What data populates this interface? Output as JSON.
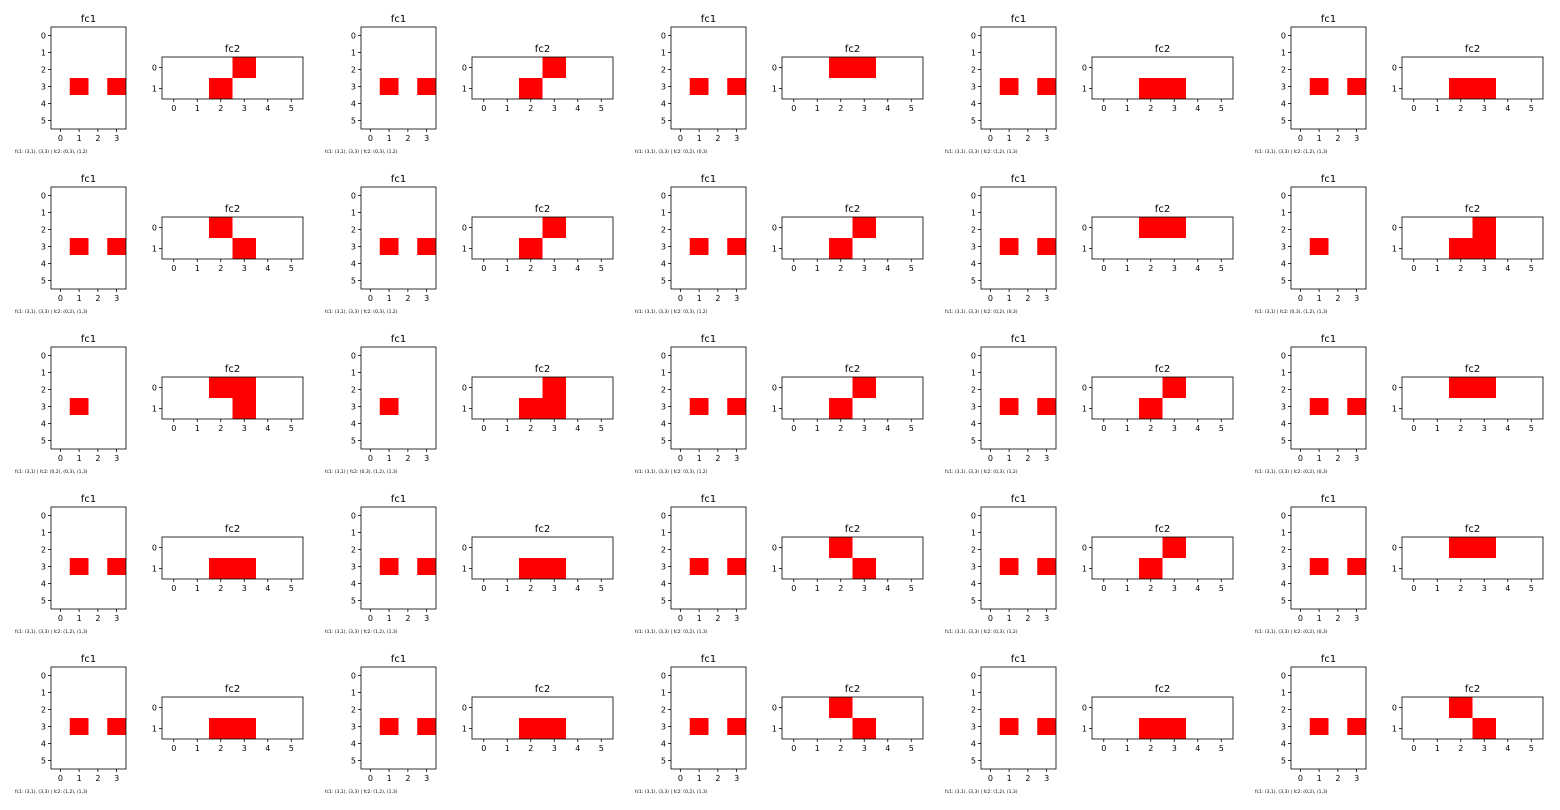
{
  "chart_data": {
    "type": "heatmap",
    "description_layout": "5 rows x 5 columns of panel pairs; each pair = fc1 (6x4 grid) and fc2 (2x6 grid); highlighted cells drawn in red",
    "fill_color": "#ff0000",
    "background_color": "#ffffff",
    "panels": [
      {
        "fc1_title": "fc1",
        "fc2_title": "fc2",
        "fc1_cells": [
          [
            3,
            1
          ],
          [
            3,
            3
          ]
        ],
        "fc2_cells": [
          [
            0,
            3
          ],
          [
            1,
            2
          ]
        ],
        "caption": "fc1: (3,1), (3,3) | fc2: (0,3), (1,2)"
      },
      {
        "fc1_title": "fc1",
        "fc2_title": "fc2",
        "fc1_cells": [
          [
            3,
            1
          ],
          [
            3,
            3
          ]
        ],
        "fc2_cells": [
          [
            0,
            3
          ],
          [
            1,
            2
          ]
        ],
        "caption": "fc1: (3,1), (3,3) | fc2: (0,3), (1,2)"
      },
      {
        "fc1_title": "fc1",
        "fc2_title": "fc2",
        "fc1_cells": [
          [
            3,
            1
          ],
          [
            3,
            3
          ]
        ],
        "fc2_cells": [
          [
            0,
            2
          ],
          [
            0,
            3
          ]
        ],
        "caption": "fc1: (3,1), (3,3) | fc2: (0,2), (0,3)"
      },
      {
        "fc1_title": "fc1",
        "fc2_title": "fc2",
        "fc1_cells": [
          [
            3,
            1
          ],
          [
            3,
            3
          ]
        ],
        "fc2_cells": [
          [
            1,
            2
          ],
          [
            1,
            3
          ]
        ],
        "caption": "fc1: (3,1), (3,3) | fc2: (1,2), (1,3)"
      },
      {
        "fc1_title": "fc1",
        "fc2_title": "fc2",
        "fc1_cells": [
          [
            3,
            1
          ],
          [
            3,
            3
          ]
        ],
        "fc2_cells": [
          [
            1,
            2
          ],
          [
            1,
            3
          ]
        ],
        "caption": "fc1: (3,1), (3,3) | fc2: (1,2), (1,3)"
      },
      {
        "fc1_title": "fc1",
        "fc2_title": "fc2",
        "fc1_cells": [
          [
            3,
            1
          ],
          [
            3,
            3
          ]
        ],
        "fc2_cells": [
          [
            0,
            2
          ],
          [
            1,
            3
          ]
        ],
        "caption": "fc1: (3,1), (3,3) | fc2: (0,2), (1,3)"
      },
      {
        "fc1_title": "fc1",
        "fc2_title": "fc2",
        "fc1_cells": [
          [
            3,
            1
          ],
          [
            3,
            3
          ]
        ],
        "fc2_cells": [
          [
            0,
            3
          ],
          [
            1,
            2
          ]
        ],
        "caption": "fc1: (3,1), (3,3) | fc2: (0,3), (1,2)"
      },
      {
        "fc1_title": "fc1",
        "fc2_title": "fc2",
        "fc1_cells": [
          [
            3,
            1
          ],
          [
            3,
            3
          ]
        ],
        "fc2_cells": [
          [
            0,
            3
          ],
          [
            1,
            2
          ]
        ],
        "caption": "fc1: (3,1), (3,3) | fc2: (0,3), (1,2)"
      },
      {
        "fc1_title": "fc1",
        "fc2_title": "fc2",
        "fc1_cells": [
          [
            3,
            1
          ],
          [
            3,
            3
          ]
        ],
        "fc2_cells": [
          [
            0,
            2
          ],
          [
            0,
            3
          ]
        ],
        "caption": "fc1: (3,1), (3,3) | fc2: (0,2), (0,3)"
      },
      {
        "fc1_title": "fc1",
        "fc2_title": "fc2",
        "fc1_cells": [
          [
            3,
            1
          ]
        ],
        "fc2_cells": [
          [
            0,
            3
          ],
          [
            1,
            2
          ],
          [
            1,
            3
          ]
        ],
        "caption": "fc1: (3,1) | fc2: (0,3), (1,2), (1,3)"
      },
      {
        "fc1_title": "fc1",
        "fc2_title": "fc2",
        "fc1_cells": [
          [
            3,
            1
          ]
        ],
        "fc2_cells": [
          [
            0,
            2
          ],
          [
            0,
            3
          ],
          [
            1,
            3
          ]
        ],
        "caption": "fc1: (3,1) | fc2: (0,2), (0,3), (1,3)"
      },
      {
        "fc1_title": "fc1",
        "fc2_title": "fc2",
        "fc1_cells": [
          [
            3,
            1
          ]
        ],
        "fc2_cells": [
          [
            0,
            3
          ],
          [
            1,
            2
          ],
          [
            1,
            3
          ]
        ],
        "caption": "fc1: (3,1) | fc2: (0,3), (1,2), (1,3)"
      },
      {
        "fc1_title": "fc1",
        "fc2_title": "fc2",
        "fc1_cells": [
          [
            3,
            1
          ],
          [
            3,
            3
          ]
        ],
        "fc2_cells": [
          [
            0,
            3
          ],
          [
            1,
            2
          ]
        ],
        "caption": "fc1: (3,1), (3,3) | fc2: (0,3), (1,2)"
      },
      {
        "fc1_title": "fc1",
        "fc2_title": "fc2",
        "fc1_cells": [
          [
            3,
            1
          ],
          [
            3,
            3
          ]
        ],
        "fc2_cells": [
          [
            0,
            3
          ],
          [
            1,
            2
          ]
        ],
        "caption": "fc1: (3,1), (3,3) | fc2: (0,3), (1,2)"
      },
      {
        "fc1_title": "fc1",
        "fc2_title": "fc2",
        "fc1_cells": [
          [
            3,
            1
          ],
          [
            3,
            3
          ]
        ],
        "fc2_cells": [
          [
            0,
            2
          ],
          [
            0,
            3
          ]
        ],
        "caption": "fc1: (3,1), (3,3) | fc2: (0,2), (0,3)"
      },
      {
        "fc1_title": "fc1",
        "fc2_title": "fc2",
        "fc1_cells": [
          [
            3,
            1
          ],
          [
            3,
            3
          ]
        ],
        "fc2_cells": [
          [
            1,
            2
          ],
          [
            1,
            3
          ]
        ],
        "caption": "fc1: (3,1), (3,3) | fc2: (1,2), (1,3)"
      },
      {
        "fc1_title": "fc1",
        "fc2_title": "fc2",
        "fc1_cells": [
          [
            3,
            1
          ],
          [
            3,
            3
          ]
        ],
        "fc2_cells": [
          [
            1,
            2
          ],
          [
            1,
            3
          ]
        ],
        "caption": "fc1: (3,1), (3,3) | fc2: (1,2), (1,3)"
      },
      {
        "fc1_title": "fc1",
        "fc2_title": "fc2",
        "fc1_cells": [
          [
            3,
            1
          ],
          [
            3,
            3
          ]
        ],
        "fc2_cells": [
          [
            0,
            2
          ],
          [
            1,
            3
          ]
        ],
        "caption": "fc1: (3,1), (3,3) | fc2: (0,2), (1,3)"
      },
      {
        "fc1_title": "fc1",
        "fc2_title": "fc2",
        "fc1_cells": [
          [
            3,
            1
          ],
          [
            3,
            3
          ]
        ],
        "fc2_cells": [
          [
            0,
            3
          ],
          [
            1,
            2
          ]
        ],
        "caption": "fc1: (3,1), (3,3) | fc2: (0,3), (1,2)"
      },
      {
        "fc1_title": "fc1",
        "fc2_title": "fc2",
        "fc1_cells": [
          [
            3,
            1
          ],
          [
            3,
            3
          ]
        ],
        "fc2_cells": [
          [
            0,
            2
          ],
          [
            0,
            3
          ]
        ],
        "caption": "fc1: (3,1), (3,3) | fc2: (0,2), (0,3)"
      },
      {
        "fc1_title": "fc1",
        "fc2_title": "fc2",
        "fc1_cells": [
          [
            3,
            1
          ],
          [
            3,
            3
          ]
        ],
        "fc2_cells": [
          [
            1,
            2
          ],
          [
            1,
            3
          ]
        ],
        "caption": "fc1: (3,1), (3,3) | fc2: (1,2), (1,3)"
      },
      {
        "fc1_title": "fc1",
        "fc2_title": "fc2",
        "fc1_cells": [
          [
            3,
            1
          ],
          [
            3,
            3
          ]
        ],
        "fc2_cells": [
          [
            1,
            2
          ],
          [
            1,
            3
          ]
        ],
        "caption": "fc1: (3,1), (3,3) | fc2: (1,2), (1,3)"
      },
      {
        "fc1_title": "fc1",
        "fc2_title": "fc2",
        "fc1_cells": [
          [
            3,
            1
          ],
          [
            3,
            3
          ]
        ],
        "fc2_cells": [
          [
            0,
            2
          ],
          [
            1,
            3
          ]
        ],
        "caption": "fc1: (3,1), (3,3) | fc2: (0,2), (1,3)"
      },
      {
        "fc1_title": "fc1",
        "fc2_title": "fc2",
        "fc1_cells": [
          [
            3,
            1
          ],
          [
            3,
            3
          ]
        ],
        "fc2_cells": [
          [
            1,
            2
          ],
          [
            1,
            3
          ]
        ],
        "caption": "fc1: (3,1), (3,3) | fc2: (1,2), (1,3)"
      },
      {
        "fc1_title": "fc1",
        "fc2_title": "fc2",
        "fc1_cells": [
          [
            3,
            1
          ],
          [
            3,
            3
          ]
        ],
        "fc2_cells": [
          [
            0,
            2
          ],
          [
            1,
            3
          ]
        ],
        "caption": "fc1: (3,1), (3,3) | fc2: (0,2), (1,3)"
      }
    ],
    "fc1_grid": {
      "rows": 6,
      "cols": 4,
      "x_ticks": [
        0,
        1,
        2,
        3
      ],
      "y_ticks": [
        0,
        1,
        2,
        3,
        4,
        5
      ]
    },
    "fc2_grid": {
      "rows": 2,
      "cols": 6,
      "x_ticks": [
        0,
        1,
        2,
        3,
        4,
        5
      ],
      "y_ticks": [
        0,
        1
      ]
    },
    "grid": false,
    "legend": "none"
  }
}
